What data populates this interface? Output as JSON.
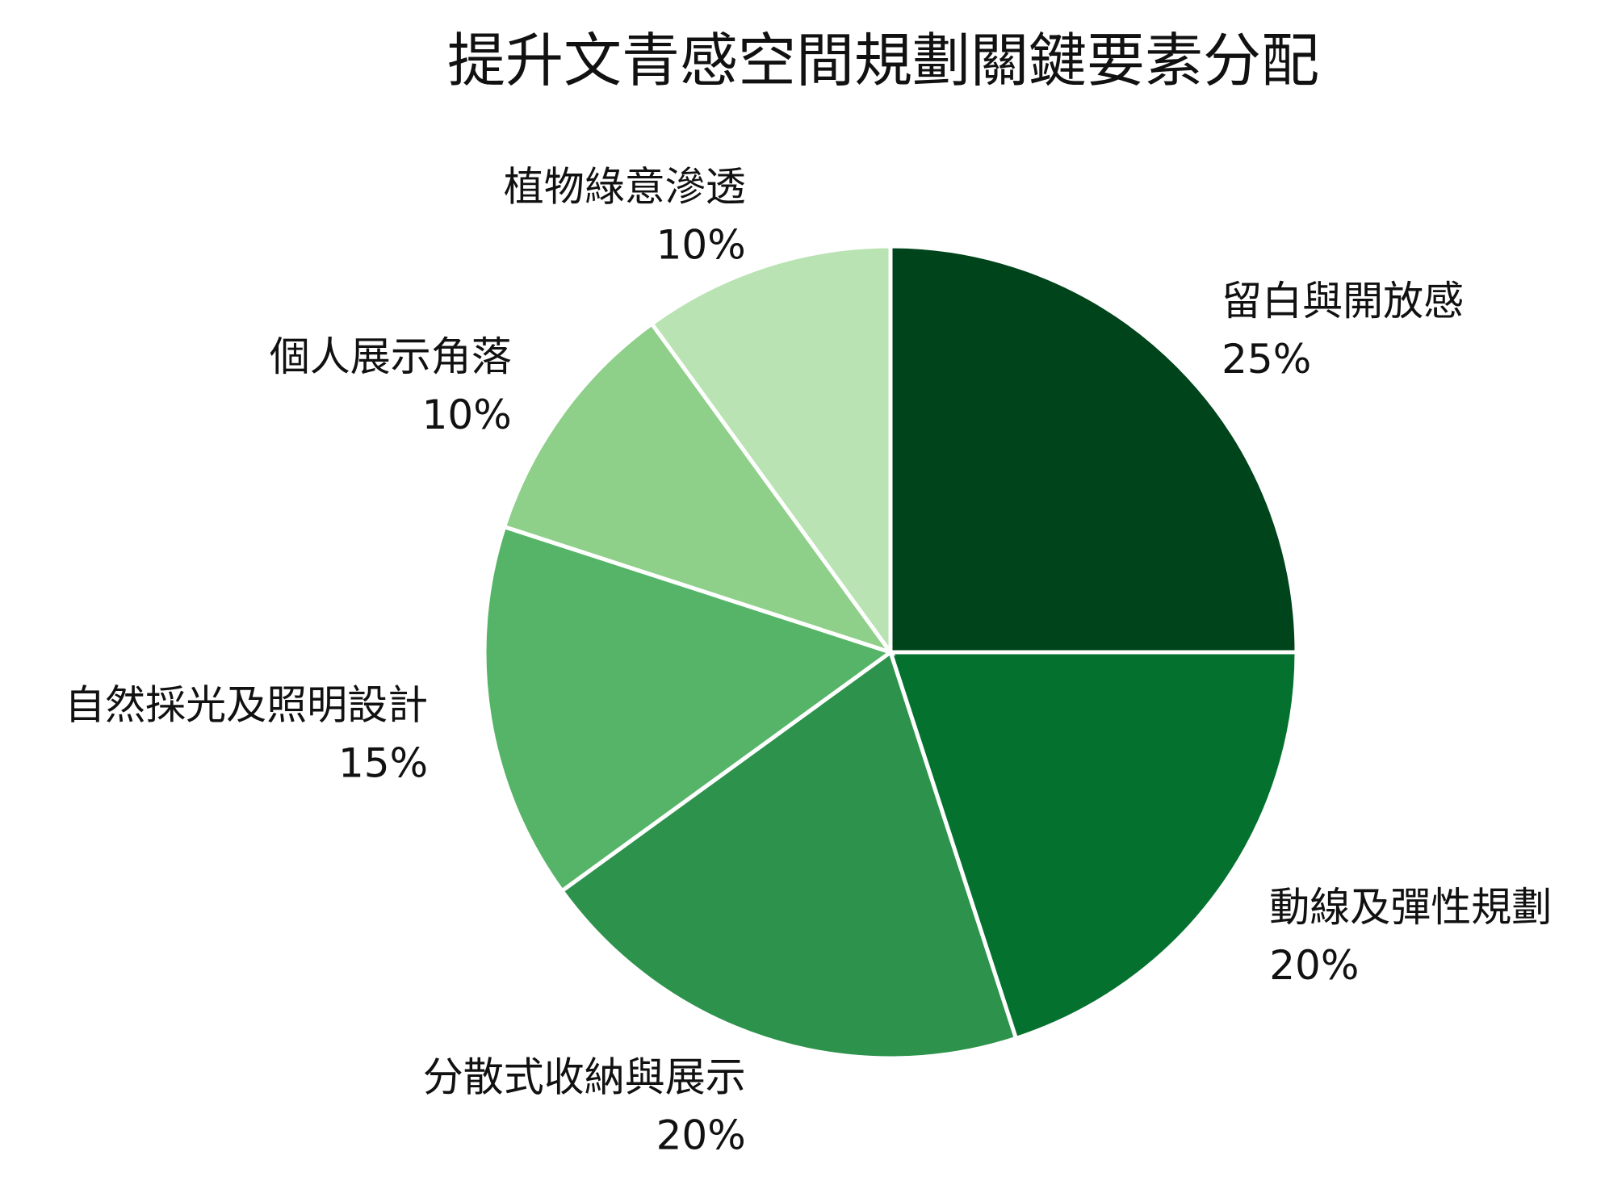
{
  "chart_data": {
    "type": "pie",
    "title": "提升文青感空間規劃關鍵要素分配",
    "start_angle_deg": 0,
    "direction": "clockwise",
    "slices": [
      {
        "label": "留白與開放感",
        "value": 25,
        "value_text": "25%",
        "color": "#00441b"
      },
      {
        "label": "動線及彈性規劃",
        "value": 20,
        "value_text": "20%",
        "color": "#05712f"
      },
      {
        "label": "分散式收納與展示",
        "value": 20,
        "value_text": "20%",
        "color": "#2d924b"
      },
      {
        "label": "自然採光及照明設計",
        "value": 15,
        "value_text": "15%",
        "color": "#56b468"
      },
      {
        "label": "個人展示角落",
        "value": 10,
        "value_text": "10%",
        "color": "#8ecf89"
      },
      {
        "label": "植物綠意滲透",
        "value": 10,
        "value_text": "10%",
        "color": "#b9e3b2"
      }
    ]
  }
}
